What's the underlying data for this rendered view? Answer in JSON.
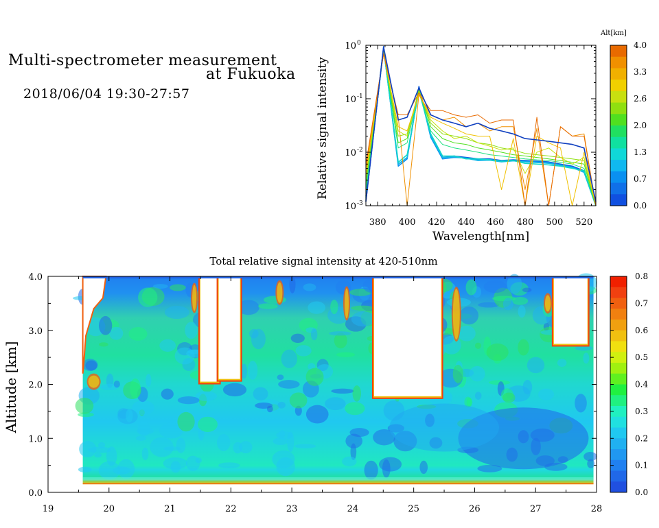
{
  "header": {
    "line1": "Multi-spectrometer measurement",
    "line2": "at Fukuoka",
    "line3": "2018/06/04 19:30-27:57"
  },
  "chart_data": [
    {
      "type": "line",
      "xlabel": "Wavelength[nm]",
      "ylabel": "Relative signal intensity",
      "xlim": [
        372,
        528
      ],
      "ylim": [
        0.001,
        1
      ],
      "yscale": "log",
      "x_ticks": [
        380,
        400,
        420,
        440,
        460,
        480,
        500,
        520
      ],
      "y_ticks": [
        {
          "base": "10",
          "exp": "0",
          "value": 1
        },
        {
          "base": "10",
          "exp": "-1",
          "value": 0.1
        },
        {
          "base": "10",
          "exp": "-2",
          "value": 0.01
        },
        {
          "base": "10",
          "exp": "-3",
          "value": 0.001
        }
      ],
      "x": [
        372,
        384,
        394,
        400,
        408,
        416,
        424,
        432,
        440,
        448,
        456,
        464,
        472,
        480,
        488,
        496,
        504,
        512,
        520,
        528
      ],
      "series": [
        {
          "alt": 0.0,
          "color": "#1060e0",
          "values": [
            0.0012,
            0.95,
            0.006,
            0.008,
            0.17,
            0.02,
            0.008,
            0.0085,
            0.008,
            0.0075,
            0.0075,
            0.007,
            0.0072,
            0.007,
            0.0068,
            0.0066,
            0.006,
            0.0055,
            0.0045,
            0.001
          ]
        },
        {
          "alt": 0.3,
          "color": "#0a90f0",
          "values": [
            0.0013,
            0.9,
            0.0055,
            0.0075,
            0.16,
            0.019,
            0.0075,
            0.008,
            0.0078,
            0.0072,
            0.0073,
            0.0068,
            0.007,
            0.0068,
            0.0066,
            0.0064,
            0.0058,
            0.0053,
            0.0043,
            0.001
          ]
        },
        {
          "alt": 0.5,
          "color": "#10b8e8",
          "values": [
            0.0014,
            0.88,
            0.006,
            0.008,
            0.15,
            0.02,
            0.008,
            0.0082,
            0.0077,
            0.007,
            0.0071,
            0.0066,
            0.0069,
            0.0066,
            0.0064,
            0.0062,
            0.0057,
            0.0052,
            0.0042,
            0.001
          ]
        },
        {
          "alt": 1.0,
          "color": "#10d8c8",
          "values": [
            0.0015,
            0.85,
            0.0065,
            0.009,
            0.14,
            0.022,
            0.0085,
            0.0085,
            0.0075,
            0.0075,
            0.0072,
            0.0068,
            0.007,
            0.0062,
            0.006,
            0.0058,
            0.0055,
            0.005,
            0.0045,
            0.001
          ]
        },
        {
          "alt": 1.5,
          "color": "#20e080",
          "values": [
            0.002,
            0.8,
            0.012,
            0.015,
            0.14,
            0.025,
            0.014,
            0.012,
            0.011,
            0.01,
            0.009,
            0.0085,
            0.008,
            0.0075,
            0.0072,
            0.007,
            0.0065,
            0.006,
            0.005,
            0.001
          ]
        },
        {
          "alt": 2.0,
          "color": "#50e020",
          "values": [
            0.0025,
            0.78,
            0.015,
            0.018,
            0.15,
            0.03,
            0.018,
            0.015,
            0.014,
            0.012,
            0.011,
            0.01,
            0.009,
            0.0085,
            0.008,
            0.0075,
            0.007,
            0.0065,
            0.006,
            0.001
          ]
        },
        {
          "alt": 2.3,
          "color": "#90e010",
          "values": [
            0.003,
            0.75,
            0.02,
            0.022,
            0.14,
            0.035,
            0.022,
            0.02,
            0.018,
            0.015,
            0.014,
            0.012,
            0.011,
            0.0095,
            0.009,
            0.0085,
            0.008,
            0.0075,
            0.007,
            0.001
          ]
        },
        {
          "alt": 2.8,
          "color": "#c8e010",
          "values": [
            0.0035,
            0.72,
            0.025,
            0.02,
            0.13,
            0.04,
            0.025,
            0.018,
            0.02,
            0.015,
            0.013,
            0.011,
            0.012,
            0.004,
            0.01,
            0.012,
            0.008,
            0.006,
            0.008,
            0.001
          ]
        },
        {
          "alt": 3.2,
          "color": "#f0c000",
          "values": [
            0.004,
            0.7,
            0.03,
            0.025,
            0.12,
            0.045,
            0.035,
            0.028,
            0.022,
            0.02,
            0.02,
            0.002,
            0.018,
            0.001,
            0.02,
            0.015,
            0.012,
            0.001,
            0.01,
            0.001
          ]
        },
        {
          "alt": 3.6,
          "color": "#f09000",
          "values": [
            0.005,
            0.7,
            0.045,
            0.001,
            0.12,
            0.05,
            0.04,
            0.045,
            0.03,
            0.035,
            0.025,
            0.03,
            0.03,
            0.002,
            0.028,
            0.001,
            0.03,
            0.02,
            0.022,
            0.001
          ]
        },
        {
          "alt": 4.0,
          "color": "#e86a00",
          "values": [
            0.006,
            0.68,
            0.05,
            0.05,
            0.13,
            0.06,
            0.06,
            0.05,
            0.045,
            0.05,
            0.035,
            0.04,
            0.04,
            0.001,
            0.045,
            0.001,
            0.03,
            0.02,
            0.02,
            0.001
          ]
        },
        {
          "alt": 0.8,
          "color": "#1040c0",
          "values": [
            0.0012,
            0.92,
            0.04,
            0.045,
            0.16,
            0.05,
            0.04,
            0.035,
            0.03,
            0.035,
            0.028,
            0.025,
            0.022,
            0.018,
            0.017,
            0.016,
            0.015,
            0.014,
            0.012,
            0.0012
          ]
        }
      ]
    },
    {
      "type": "heatmap",
      "title": "Total relative signal intensity at 420-510nm",
      "xlabel": "",
      "ylabel": "Altitude [km]",
      "xlim": [
        19,
        28
      ],
      "ylim": [
        0,
        4
      ],
      "x_ticks": [
        "19",
        "20",
        "21",
        "22",
        "23",
        "24",
        "25",
        "26",
        "27",
        "28"
      ],
      "y_ticks": [
        "0.0",
        "1.0",
        "2.0",
        "3.0",
        "4.0"
      ],
      "data_x_range": [
        19.57,
        27.95
      ],
      "data_y_range": [
        0.15,
        4.0
      ],
      "cloud_gaps": [
        {
          "t_start": 21.5,
          "t_end": 21.8,
          "base_km": 2.05
        },
        {
          "t_start": 21.8,
          "t_end": 22.15,
          "base_km": 2.1
        },
        {
          "t_start": 24.35,
          "t_end": 25.45,
          "base_km": 1.78
        },
        {
          "t_start": 27.3,
          "t_end": 27.85,
          "base_km": 2.75
        }
      ]
    }
  ],
  "colorbar_top": {
    "label": "Alt[km]",
    "ticks": [
      "4.0",
      "3.3",
      "2.6",
      "2.0",
      "1.3",
      "0.7",
      "0.0"
    ],
    "colors": [
      "#e86a00",
      "#f09000",
      "#f0b000",
      "#f0d000",
      "#c8e010",
      "#90e010",
      "#50e020",
      "#20e060",
      "#10e0a0",
      "#10d8d8",
      "#10b8f0",
      "#0a90f0",
      "#1070e8",
      "#1050e0"
    ]
  },
  "colorbar_bottom": {
    "ticks": [
      "0.8",
      "0.7",
      "0.6",
      "0.5",
      "0.4",
      "0.3",
      "0.2",
      "0.1",
      "0.0"
    ],
    "colors": [
      "#f02000",
      "#f04010",
      "#f06010",
      "#f08010",
      "#f0a010",
      "#f0c010",
      "#f0e010",
      "#d0f010",
      "#a0f010",
      "#60f020",
      "#20f040",
      "#20f080",
      "#20f0c0",
      "#20e0e0",
      "#20c8f0",
      "#20b0f0",
      "#2098f0",
      "#2080f0",
      "#2068e8",
      "#2050e0"
    ]
  }
}
